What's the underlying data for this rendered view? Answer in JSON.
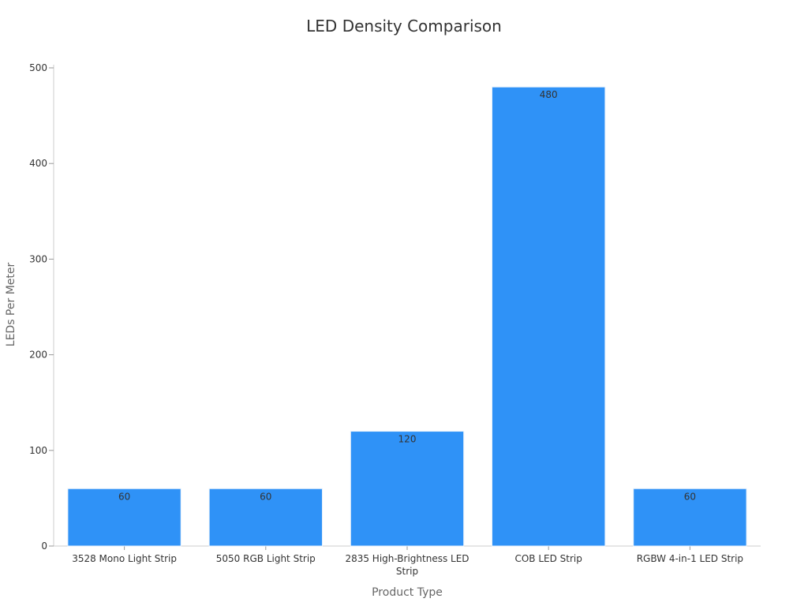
{
  "chart_data": {
    "type": "bar",
    "title": "LED Density Comparison",
    "xlabel": "Product Type",
    "ylabel": "LEDs Per Meter",
    "categories": [
      "3528 Mono Light Strip",
      "5050 RGB Light Strip",
      "2835 High-Brightness LED Strip",
      "COB LED Strip",
      "RGBW 4-in-1 LED Strip"
    ],
    "values": [
      60,
      60,
      120,
      480,
      60
    ],
    "ylim": [
      0,
      500
    ],
    "yticks": [
      0,
      100,
      200,
      300,
      400,
      500
    ],
    "grid": false,
    "legend": "none",
    "bar_color": "#2f92f7",
    "data_labels": true
  }
}
